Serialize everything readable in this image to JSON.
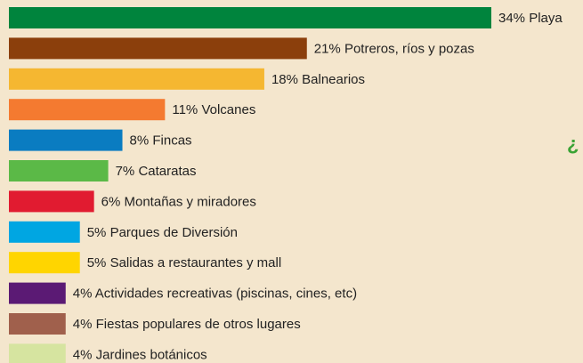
{
  "chart_data": {
    "type": "hbar",
    "categories": [
      "Playa",
      "Potreros, ríos y pozas",
      "Balnearios",
      "Volcanes",
      "Fincas",
      "Cataratas",
      "Montañas y miradores",
      "Parques de Diversión",
      "Salidas a restaurantes y mall",
      "Actividades recreativas (piscinas, cines, etc)",
      "Fiestas populares de otros lugares",
      "Jardines botánicos"
    ],
    "values": [
      34,
      21,
      18,
      11,
      8,
      7,
      6,
      5,
      5,
      4,
      4,
      4
    ],
    "value_labels": [
      "34%",
      "21%",
      "18%",
      "11%",
      "8%",
      "7%",
      "6%",
      "5%",
      "5%",
      "4%",
      "4%",
      "4%"
    ],
    "colors": [
      "#00843d",
      "#8b3f0c",
      "#f5b731",
      "#f47a30",
      "#0a7cc1",
      "#5bb947",
      "#e11b30",
      "#00a6e2",
      "#ffd500",
      "#5b1a74",
      "#a0604c",
      "#d6e4a0"
    ],
    "annotation": "¿"
  }
}
